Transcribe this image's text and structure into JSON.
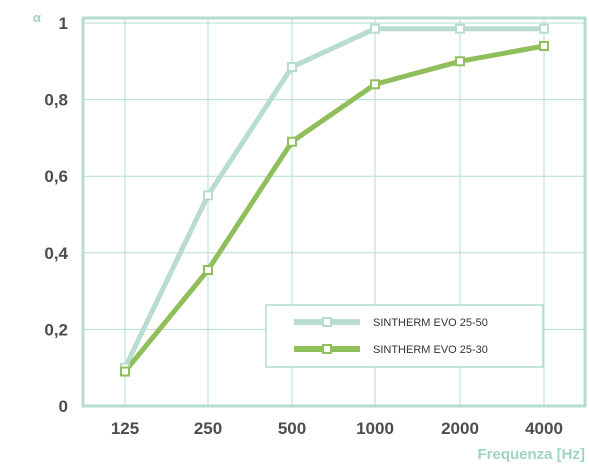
{
  "chart_data": {
    "type": "line",
    "xlabel": "Frequenza [Hz]",
    "ylabel": "α",
    "categories": [
      "125",
      "250",
      "500",
      "1000",
      "2000",
      "4000"
    ],
    "yticks": [
      "0",
      "0,2",
      "0,4",
      "0,6",
      "0,8",
      "1"
    ],
    "ylim": [
      0,
      1
    ],
    "grid": true,
    "legend_position": "bottom-right",
    "series": [
      {
        "name": "SINTHERM EVO 25-50",
        "values": [
          0.1,
          0.55,
          0.885,
          0.985,
          0.985,
          0.985
        ],
        "color": "#b8dcd0"
      },
      {
        "name": "SINTHERM EVO 25-30",
        "values": [
          0.09,
          0.355,
          0.69,
          0.84,
          0.9,
          0.94
        ],
        "color": "#8fbe5a"
      }
    ]
  },
  "colors": {
    "frame": "#b3ddd0",
    "grid": "#b3ddd0",
    "marker_fill": "#ffffff"
  }
}
